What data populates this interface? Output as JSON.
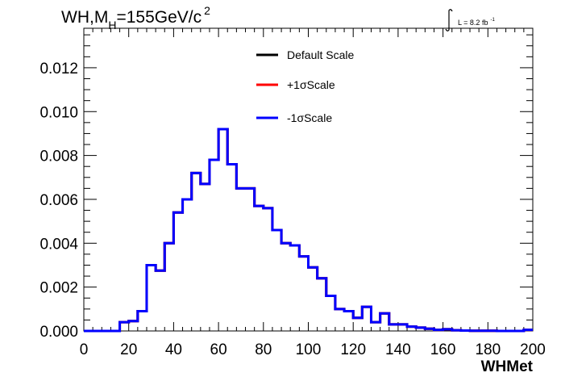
{
  "chart_data": {
    "type": "line",
    "title_main": "WH,M",
    "title_sub": "H",
    "title_rest": "=155GeV/c",
    "title_sup": "2",
    "lumi_prefix": "L = 8.2 fb",
    "lumi_sup": "-1",
    "xlabel": "WHMet",
    "ylabel": "",
    "xlim": [
      0,
      200
    ],
    "ylim": [
      0,
      0.0138
    ],
    "x_ticks": [
      "0",
      "20",
      "40",
      "60",
      "80",
      "100",
      "120",
      "140",
      "160",
      "180",
      "200"
    ],
    "y_ticks": [
      "0.000",
      "0.002",
      "0.004",
      "0.006",
      "0.008",
      "0.010",
      "0.012"
    ],
    "legend_position": "top-center",
    "bin_width": 4,
    "x": [
      0,
      4,
      8,
      12,
      16,
      20,
      24,
      28,
      32,
      36,
      40,
      44,
      48,
      52,
      56,
      60,
      64,
      68,
      72,
      76,
      80,
      84,
      88,
      92,
      96,
      100,
      104,
      108,
      112,
      116,
      120,
      124,
      128,
      132,
      136,
      140,
      144,
      148,
      152,
      156,
      160,
      164,
      168,
      172,
      176,
      180,
      184,
      188,
      192,
      196
    ],
    "series": [
      {
        "name": "Default Scale",
        "color": "#000000",
        "values": [
          0,
          0,
          0,
          0,
          0.0004,
          0.00045,
          0.0009,
          0.003,
          0.00275,
          0.004,
          0.0054,
          0.006,
          0.0072,
          0.0067,
          0.0078,
          0.0092,
          0.0076,
          0.0065,
          0.0065,
          0.0057,
          0.0056,
          0.0046,
          0.004,
          0.0039,
          0.0034,
          0.0029,
          0.0024,
          0.0016,
          0.001,
          0.0009,
          0.0006,
          0.0011,
          0.0004,
          0.0008,
          0.0003,
          0.0003,
          0.0002,
          0.00015,
          0.0001,
          5e-05,
          8e-05,
          3e-05,
          2e-05,
          1e-05,
          1e-05,
          1e-05,
          0,
          0,
          0,
          5e-05
        ]
      },
      {
        "name": "+1σScale",
        "color": "#ff0000",
        "values": [
          0,
          0,
          0,
          0,
          0.0004,
          0.00045,
          0.0009,
          0.003,
          0.00275,
          0.004,
          0.0054,
          0.006,
          0.0072,
          0.0067,
          0.0078,
          0.0092,
          0.0076,
          0.0065,
          0.0065,
          0.0057,
          0.0056,
          0.0046,
          0.004,
          0.0039,
          0.0034,
          0.0029,
          0.0024,
          0.0016,
          0.001,
          0.0009,
          0.0006,
          0.0011,
          0.0004,
          0.0008,
          0.0003,
          0.0003,
          0.0002,
          0.00015,
          0.0001,
          5e-05,
          8e-05,
          3e-05,
          2e-05,
          1e-05,
          1e-05,
          1e-05,
          0,
          0,
          0,
          5e-05
        ]
      },
      {
        "name": "-1σScale",
        "color": "#0000ff",
        "values": [
          0,
          0,
          0,
          0,
          0.0004,
          0.00045,
          0.0009,
          0.003,
          0.00275,
          0.004,
          0.0054,
          0.006,
          0.0072,
          0.0067,
          0.0078,
          0.0092,
          0.0076,
          0.0065,
          0.0065,
          0.0057,
          0.0056,
          0.0046,
          0.004,
          0.0039,
          0.0034,
          0.0029,
          0.0024,
          0.0016,
          0.001,
          0.0009,
          0.0006,
          0.0011,
          0.0004,
          0.0008,
          0.0003,
          0.0003,
          0.0002,
          0.00015,
          0.0001,
          5e-05,
          8e-05,
          3e-05,
          2e-05,
          1e-05,
          1e-05,
          1e-05,
          0,
          0,
          0,
          5e-05
        ]
      }
    ]
  }
}
